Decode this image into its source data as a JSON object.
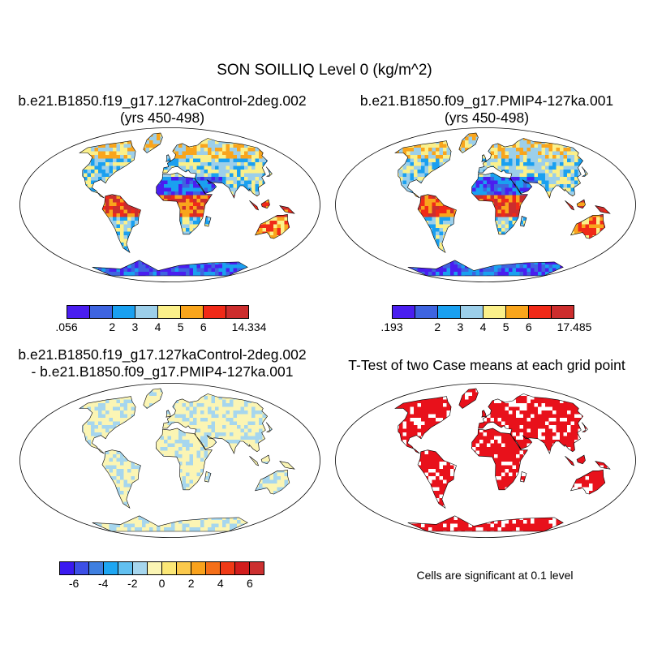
{
  "title": "SON SOILLIQ Level 0 (kg/m^2)",
  "panels": [
    {
      "id": "control",
      "title_line1": "b.e21.B1850.f19_g17.127kaControl-2deg.002",
      "title_line2": "(yrs 450-498)",
      "colorbar": {
        "colors": [
          "#4a1ef0",
          "#3e64e0",
          "#1aa0f0",
          "#9ccfea",
          "#fbf08a",
          "#f9a51c",
          "#f02a18",
          "#cc2d2d"
        ],
        "tick_labels": [
          ".056",
          "2",
          "3",
          "4",
          "5",
          "6",
          "14.334"
        ]
      }
    },
    {
      "id": "pmip4",
      "title_line1": "b.e21.B1850.f09_g17.PMIP4-127ka.001",
      "title_line2": "(yrs 450-498)",
      "colorbar": {
        "colors": [
          "#4a1ef0",
          "#3e64e0",
          "#1aa0f0",
          "#9ccfea",
          "#fbf08a",
          "#f9a51c",
          "#f02a18",
          "#cc2d2d"
        ],
        "tick_labels": [
          ".193",
          "2",
          "3",
          "4",
          "5",
          "6",
          "17.485"
        ]
      }
    },
    {
      "id": "difference",
      "title_line1": "b.e21.B1850.f19_g17.127kaControl-2deg.002",
      "title_line2": "- b.e21.B1850.f09_g17.PMIP4-127ka.001",
      "colorbar": {
        "colors": [
          "#3a1af0",
          "#3c4fe6",
          "#3f7fe0",
          "#1ea6f2",
          "#62c0f0",
          "#a6d6ee",
          "#fbf5b4",
          "#fbe776",
          "#fbc94c",
          "#f9a21c",
          "#f56f18",
          "#f03a16",
          "#d21d1d",
          "#cc3030"
        ],
        "tick_labels": [
          "-6",
          "-4",
          "-2",
          "0",
          "2",
          "4",
          "6"
        ]
      }
    },
    {
      "id": "ttest",
      "title_line1": "T-Test of two Case means at each grid point",
      "note": "Cells are significant at 0.1 level"
    }
  ],
  "map_colors": {
    "land_dry": "#3e64e0",
    "land_mid": "#fbf08a",
    "land_wet": "#f02a18",
    "diff_pos": "#fbf5b4",
    "diff_neg": "#a6d6ee",
    "significant": "#e8111b"
  }
}
